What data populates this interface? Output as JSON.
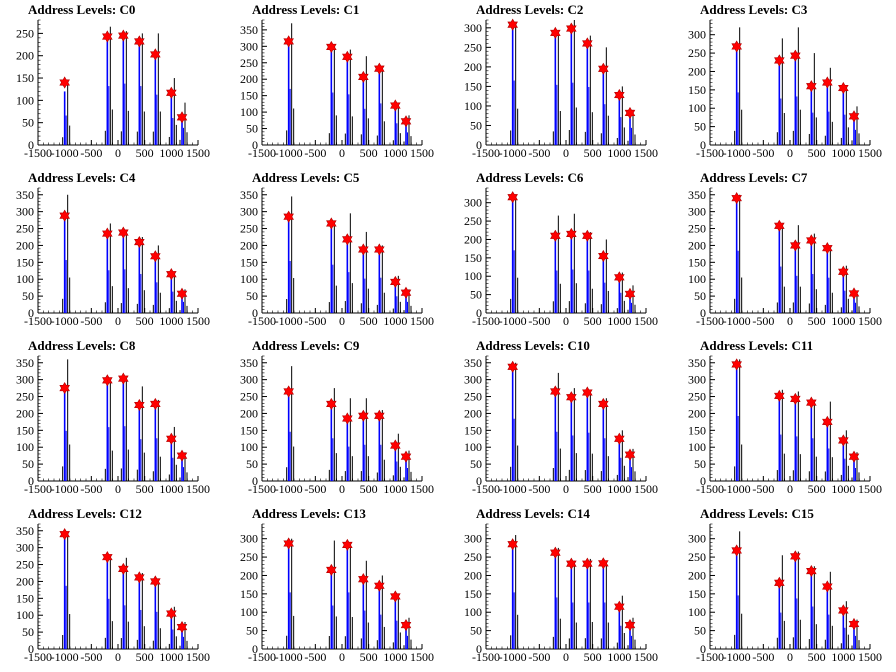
{
  "figure": {
    "title_prefix": "Address Levels: "
  },
  "chart_data": [
    {
      "type": "histogram",
      "title": "Address Levels: C0",
      "xlim": [
        -1500,
        1500
      ],
      "ylim": [
        0,
        280
      ],
      "yticks": [
        0,
        50,
        100,
        150,
        200,
        250
      ],
      "xticks": [
        -1500,
        -1000,
        -500,
        0,
        500,
        1000,
        1500
      ],
      "peaks": [
        {
          "x": -1000,
          "blue": 120,
          "black": 145,
          "marker": 140
        },
        {
          "x": -200,
          "blue": 240,
          "black": 265,
          "marker": 243
        },
        {
          "x": 100,
          "blue": 250,
          "black": 255,
          "marker": 245
        },
        {
          "x": 400,
          "blue": 240,
          "black": 250,
          "marker": 232
        },
        {
          "x": 700,
          "blue": 205,
          "black": 250,
          "marker": 203
        },
        {
          "x": 1000,
          "blue": 110,
          "black": 150,
          "marker": 117
        },
        {
          "x": 1200,
          "blue": 70,
          "black": 95,
          "marker": 62
        }
      ]
    },
    {
      "type": "histogram",
      "title": "Address Levels: C1",
      "xlim": [
        -1500,
        1500
      ],
      "ylim": [
        0,
        380
      ],
      "yticks": [
        0,
        50,
        100,
        150,
        200,
        250,
        300,
        350
      ],
      "xticks": [
        -1500,
        -1000,
        -500,
        0,
        500,
        1000,
        1500
      ],
      "peaks": [
        {
          "x": -1000,
          "blue": 310,
          "black": 370,
          "marker": 315
        },
        {
          "x": -200,
          "blue": 290,
          "black": 300,
          "marker": 298
        },
        {
          "x": 100,
          "blue": 280,
          "black": 290,
          "marker": 268
        },
        {
          "x": 400,
          "blue": 200,
          "black": 270,
          "marker": 207
        },
        {
          "x": 700,
          "blue": 230,
          "black": 240,
          "marker": 232
        },
        {
          "x": 1000,
          "blue": 120,
          "black": 120,
          "marker": 120
        },
        {
          "x": 1200,
          "blue": 70,
          "black": 90,
          "marker": 72
        }
      ]
    },
    {
      "type": "histogram",
      "title": "Address Levels: C2",
      "xlim": [
        -1500,
        1500
      ],
      "ylim": [
        0,
        320
      ],
      "yticks": [
        0,
        50,
        100,
        150,
        200,
        250,
        300
      ],
      "xticks": [
        -1500,
        -1000,
        -500,
        0,
        500,
        1000,
        1500
      ],
      "peaks": [
        {
          "x": -1000,
          "blue": 300,
          "black": 310,
          "marker": 308
        },
        {
          "x": -200,
          "blue": 280,
          "black": 290,
          "marker": 287
        },
        {
          "x": 100,
          "blue": 290,
          "black": 320,
          "marker": 298
        },
        {
          "x": 400,
          "blue": 270,
          "black": 280,
          "marker": 260
        },
        {
          "x": 700,
          "blue": 190,
          "black": 250,
          "marker": 195
        },
        {
          "x": 1000,
          "blue": 130,
          "black": 150,
          "marker": 128
        },
        {
          "x": 1200,
          "blue": 80,
          "black": 90,
          "marker": 82
        }
      ]
    },
    {
      "type": "histogram",
      "title": "Address Levels: C3",
      "xlim": [
        -1500,
        1500
      ],
      "ylim": [
        0,
        340
      ],
      "yticks": [
        0,
        50,
        100,
        150,
        200,
        250,
        300
      ],
      "xticks": [
        -1500,
        -1000,
        -500,
        0,
        500,
        1000,
        1500
      ],
      "peaks": [
        {
          "x": -1000,
          "blue": 260,
          "black": 320,
          "marker": 268
        },
        {
          "x": -200,
          "blue": 230,
          "black": 290,
          "marker": 230
        },
        {
          "x": 100,
          "blue": 240,
          "black": 320,
          "marker": 243
        },
        {
          "x": 400,
          "blue": 160,
          "black": 250,
          "marker": 160
        },
        {
          "x": 700,
          "blue": 165,
          "black": 210,
          "marker": 170
        },
        {
          "x": 1000,
          "blue": 150,
          "black": 160,
          "marker": 155
        },
        {
          "x": 1200,
          "blue": 75,
          "black": 105,
          "marker": 78
        }
      ]
    },
    {
      "type": "histogram",
      "title": "Address Levels: C4",
      "xlim": [
        -1500,
        1500
      ],
      "ylim": [
        0,
        370
      ],
      "yticks": [
        0,
        50,
        100,
        150,
        200,
        250,
        300,
        350
      ],
      "xticks": [
        -1500,
        -1000,
        -500,
        0,
        500,
        1000,
        1500
      ],
      "peaks": [
        {
          "x": -1000,
          "blue": 285,
          "black": 350,
          "marker": 288
        },
        {
          "x": -200,
          "blue": 230,
          "black": 265,
          "marker": 235
        },
        {
          "x": 100,
          "blue": 235,
          "black": 245,
          "marker": 238
        },
        {
          "x": 400,
          "blue": 210,
          "black": 225,
          "marker": 210
        },
        {
          "x": 700,
          "blue": 165,
          "black": 200,
          "marker": 168
        },
        {
          "x": 1000,
          "blue": 115,
          "black": 120,
          "marker": 115
        },
        {
          "x": 1200,
          "blue": 60,
          "black": 70,
          "marker": 57
        }
      ]
    },
    {
      "type": "histogram",
      "title": "Address Levels: C5",
      "xlim": [
        -1500,
        1500
      ],
      "ylim": [
        0,
        370
      ],
      "yticks": [
        0,
        50,
        100,
        150,
        200,
        250,
        300,
        350
      ],
      "xticks": [
        -1500,
        -1000,
        -500,
        0,
        500,
        1000,
        1500
      ],
      "peaks": [
        {
          "x": -1000,
          "blue": 280,
          "black": 345,
          "marker": 285
        },
        {
          "x": -200,
          "blue": 260,
          "black": 270,
          "marker": 265
        },
        {
          "x": 100,
          "blue": 220,
          "black": 295,
          "marker": 218
        },
        {
          "x": 400,
          "blue": 185,
          "black": 240,
          "marker": 188
        },
        {
          "x": 700,
          "blue": 190,
          "black": 200,
          "marker": 188
        },
        {
          "x": 1000,
          "blue": 90,
          "black": 110,
          "marker": 92
        },
        {
          "x": 1200,
          "blue": 60,
          "black": 70,
          "marker": 60
        }
      ]
    },
    {
      "type": "histogram",
      "title": "Address Levels: C6",
      "xlim": [
        -1500,
        1500
      ],
      "ylim": [
        0,
        340
      ],
      "yticks": [
        0,
        50,
        100,
        150,
        200,
        250,
        300
      ],
      "xticks": [
        -1500,
        -1000,
        -500,
        0,
        500,
        1000,
        1500
      ],
      "peaks": [
        {
          "x": -1000,
          "blue": 310,
          "black": 320,
          "marker": 315
        },
        {
          "x": -200,
          "blue": 210,
          "black": 265,
          "marker": 210
        },
        {
          "x": 100,
          "blue": 215,
          "black": 270,
          "marker": 215
        },
        {
          "x": 400,
          "blue": 210,
          "black": 220,
          "marker": 210
        },
        {
          "x": 700,
          "blue": 150,
          "black": 200,
          "marker": 155
        },
        {
          "x": 1000,
          "blue": 100,
          "black": 110,
          "marker": 97
        },
        {
          "x": 1200,
          "blue": 50,
          "black": 75,
          "marker": 52
        }
      ]
    },
    {
      "type": "histogram",
      "title": "Address Levels: C7",
      "xlim": [
        -1500,
        1500
      ],
      "ylim": [
        0,
        370
      ],
      "yticks": [
        0,
        50,
        100,
        150,
        200,
        250,
        300,
        350
      ],
      "xticks": [
        -1500,
        -1000,
        -500,
        0,
        500,
        1000,
        1500
      ],
      "peaks": [
        {
          "x": -1000,
          "blue": 335,
          "black": 350,
          "marker": 340
        },
        {
          "x": -200,
          "blue": 250,
          "black": 260,
          "marker": 258
        },
        {
          "x": 100,
          "blue": 200,
          "black": 260,
          "marker": 200
        },
        {
          "x": 400,
          "blue": 210,
          "black": 235,
          "marker": 215
        },
        {
          "x": 700,
          "blue": 190,
          "black": 200,
          "marker": 192
        },
        {
          "x": 1000,
          "blue": 120,
          "black": 140,
          "marker": 122
        },
        {
          "x": 1200,
          "blue": 55,
          "black": 65,
          "marker": 58
        }
      ]
    },
    {
      "type": "histogram",
      "title": "Address Levels: C8",
      "xlim": [
        -1500,
        1500
      ],
      "ylim": [
        0,
        370
      ],
      "yticks": [
        0,
        50,
        100,
        150,
        200,
        250,
        300,
        350
      ],
      "xticks": [
        -1500,
        -1000,
        -500,
        0,
        500,
        1000,
        1500
      ],
      "peaks": [
        {
          "x": -1000,
          "blue": 270,
          "black": 360,
          "marker": 275
        },
        {
          "x": -200,
          "blue": 290,
          "black": 300,
          "marker": 298
        },
        {
          "x": 100,
          "blue": 295,
          "black": 310,
          "marker": 303
        },
        {
          "x": 400,
          "blue": 225,
          "black": 280,
          "marker": 225
        },
        {
          "x": 700,
          "blue": 230,
          "black": 240,
          "marker": 228
        },
        {
          "x": 1000,
          "blue": 125,
          "black": 160,
          "marker": 125
        },
        {
          "x": 1200,
          "blue": 75,
          "black": 85,
          "marker": 75
        }
      ]
    },
    {
      "type": "histogram",
      "title": "Address Levels: C9",
      "xlim": [
        -1500,
        1500
      ],
      "ylim": [
        0,
        370
      ],
      "yticks": [
        0,
        50,
        100,
        150,
        200,
        250,
        300,
        350
      ],
      "xticks": [
        -1500,
        -1000,
        -500,
        0,
        500,
        1000,
        1500
      ],
      "peaks": [
        {
          "x": -1000,
          "blue": 265,
          "black": 340,
          "marker": 265
        },
        {
          "x": -200,
          "blue": 230,
          "black": 275,
          "marker": 228
        },
        {
          "x": 100,
          "blue": 185,
          "black": 245,
          "marker": 185
        },
        {
          "x": 400,
          "blue": 195,
          "black": 245,
          "marker": 193
        },
        {
          "x": 700,
          "blue": 195,
          "black": 210,
          "marker": 193
        },
        {
          "x": 1000,
          "blue": 105,
          "black": 140,
          "marker": 105
        },
        {
          "x": 1200,
          "blue": 70,
          "black": 90,
          "marker": 72
        }
      ]
    },
    {
      "type": "histogram",
      "title": "Address Levels: C10",
      "xlim": [
        -1500,
        1500
      ],
      "ylim": [
        0,
        370
      ],
      "yticks": [
        0,
        50,
        100,
        150,
        200,
        250,
        300,
        350
      ],
      "xticks": [
        -1500,
        -1000,
        -500,
        0,
        500,
        1000,
        1500
      ],
      "peaks": [
        {
          "x": -1000,
          "blue": 335,
          "black": 350,
          "marker": 338
        },
        {
          "x": -200,
          "blue": 265,
          "black": 320,
          "marker": 265
        },
        {
          "x": 100,
          "blue": 245,
          "black": 275,
          "marker": 248
        },
        {
          "x": 400,
          "blue": 260,
          "black": 270,
          "marker": 262
        },
        {
          "x": 700,
          "blue": 230,
          "black": 245,
          "marker": 228
        },
        {
          "x": 1000,
          "blue": 125,
          "black": 150,
          "marker": 125
        },
        {
          "x": 1200,
          "blue": 75,
          "black": 95,
          "marker": 78
        }
      ]
    },
    {
      "type": "histogram",
      "title": "Address Levels: C11",
      "xlim": [
        -1500,
        1500
      ],
      "ylim": [
        0,
        370
      ],
      "yticks": [
        0,
        50,
        100,
        150,
        200,
        250,
        300,
        350
      ],
      "xticks": [
        -1500,
        -1000,
        -500,
        0,
        500,
        1000,
        1500
      ],
      "peaks": [
        {
          "x": -1000,
          "blue": 350,
          "black": 360,
          "marker": 345
        },
        {
          "x": -200,
          "blue": 250,
          "black": 270,
          "marker": 252
        },
        {
          "x": 100,
          "blue": 240,
          "black": 265,
          "marker": 243
        },
        {
          "x": 400,
          "blue": 230,
          "black": 240,
          "marker": 232
        },
        {
          "x": 700,
          "blue": 175,
          "black": 235,
          "marker": 175
        },
        {
          "x": 1000,
          "blue": 120,
          "black": 150,
          "marker": 120
        },
        {
          "x": 1200,
          "blue": 70,
          "black": 85,
          "marker": 72
        }
      ]
    },
    {
      "type": "histogram",
      "title": "Address Levels: C12",
      "xlim": [
        -1500,
        1500
      ],
      "ylim": [
        0,
        370
      ],
      "yticks": [
        0,
        50,
        100,
        150,
        200,
        250,
        300,
        350
      ],
      "xticks": [
        -1500,
        -1000,
        -500,
        0,
        500,
        1000,
        1500
      ],
      "peaks": [
        {
          "x": -1000,
          "blue": 340,
          "black": 345,
          "marker": 340
        },
        {
          "x": -200,
          "blue": 270,
          "black": 275,
          "marker": 272
        },
        {
          "x": 100,
          "blue": 235,
          "black": 270,
          "marker": 237
        },
        {
          "x": 400,
          "blue": 210,
          "black": 225,
          "marker": 212
        },
        {
          "x": 700,
          "blue": 200,
          "black": 205,
          "marker": 200
        },
        {
          "x": 1000,
          "blue": 105,
          "black": 125,
          "marker": 105
        },
        {
          "x": 1200,
          "blue": 65,
          "black": 80,
          "marker": 65
        }
      ]
    },
    {
      "type": "histogram",
      "title": "Address Levels: C13",
      "xlim": [
        -1500,
        1500
      ],
      "ylim": [
        0,
        340
      ],
      "yticks": [
        0,
        50,
        100,
        150,
        200,
        250,
        300
      ],
      "xticks": [
        -1500,
        -1000,
        -500,
        0,
        500,
        1000,
        1500
      ],
      "peaks": [
        {
          "x": -1000,
          "blue": 280,
          "black": 300,
          "marker": 287
        },
        {
          "x": -200,
          "blue": 215,
          "black": 295,
          "marker": 215
        },
        {
          "x": 100,
          "blue": 280,
          "black": 290,
          "marker": 283
        },
        {
          "x": 400,
          "blue": 190,
          "black": 240,
          "marker": 190
        },
        {
          "x": 700,
          "blue": 170,
          "black": 200,
          "marker": 172
        },
        {
          "x": 1000,
          "blue": 140,
          "black": 150,
          "marker": 143
        },
        {
          "x": 1200,
          "blue": 65,
          "black": 85,
          "marker": 65
        }
      ]
    },
    {
      "type": "histogram",
      "title": "Address Levels: C14",
      "xlim": [
        -1500,
        1500
      ],
      "ylim": [
        0,
        340
      ],
      "yticks": [
        0,
        50,
        100,
        150,
        200,
        250,
        300
      ],
      "xticks": [
        -1500,
        -1000,
        -500,
        0,
        500,
        1000,
        1500
      ],
      "peaks": [
        {
          "x": -1000,
          "blue": 280,
          "black": 310,
          "marker": 285
        },
        {
          "x": -200,
          "blue": 255,
          "black": 275,
          "marker": 262
        },
        {
          "x": 100,
          "blue": 230,
          "black": 240,
          "marker": 232
        },
        {
          "x": 400,
          "blue": 230,
          "black": 245,
          "marker": 232
        },
        {
          "x": 700,
          "blue": 230,
          "black": 240,
          "marker": 233
        },
        {
          "x": 1000,
          "blue": 115,
          "black": 145,
          "marker": 115
        },
        {
          "x": 1200,
          "blue": 65,
          "black": 85,
          "marker": 65
        }
      ]
    },
    {
      "type": "histogram",
      "title": "Address Levels: C15",
      "xlim": [
        -1500,
        1500
      ],
      "ylim": [
        0,
        340
      ],
      "yticks": [
        0,
        50,
        100,
        150,
        200,
        250,
        300
      ],
      "xticks": [
        -1500,
        -1000,
        -500,
        0,
        500,
        1000,
        1500
      ],
      "peaks": [
        {
          "x": -1000,
          "blue": 265,
          "black": 320,
          "marker": 268
        },
        {
          "x": -200,
          "blue": 180,
          "black": 255,
          "marker": 180
        },
        {
          "x": 100,
          "blue": 250,
          "black": 265,
          "marker": 252
        },
        {
          "x": 400,
          "blue": 210,
          "black": 225,
          "marker": 212
        },
        {
          "x": 700,
          "blue": 170,
          "black": 210,
          "marker": 170
        },
        {
          "x": 1000,
          "blue": 105,
          "black": 130,
          "marker": 105
        },
        {
          "x": 1200,
          "blue": 65,
          "black": 80,
          "marker": 68
        }
      ]
    }
  ],
  "colors": {
    "blue_hist": "#0000ff",
    "black_hist": "#000000",
    "marker": "#ff0000",
    "axis": "#000000"
  }
}
